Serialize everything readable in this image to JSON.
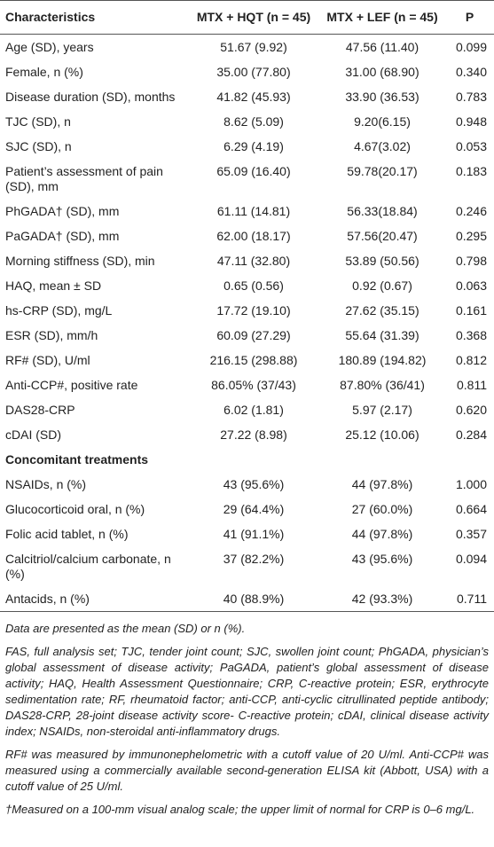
{
  "table": {
    "header": [
      "Characteristics",
      "MTX + HQT (n = 45)",
      "MTX + LEF (n = 45)",
      "P"
    ],
    "rows": [
      [
        "Age (SD), years",
        "51.67 (9.92)",
        "47.56 (11.40)",
        "0.099"
      ],
      [
        "Female, n (%)",
        "35.00 (77.80)",
        "31.00 (68.90)",
        "0.340"
      ],
      [
        "Disease duration (SD), months",
        "41.82 (45.93)",
        "33.90 (36.53)",
        "0.783"
      ],
      [
        "TJC (SD), n",
        "8.62 (5.09)",
        "9.20(6.15)",
        "0.948"
      ],
      [
        "SJC (SD), n",
        "6.29 (4.19)",
        "4.67(3.02)",
        "0.053"
      ],
      [
        "Patient’s assessment of pain (SD), mm",
        "65.09 (16.40)",
        "59.78(20.17)",
        "0.183"
      ],
      [
        "PhGADA† (SD), mm",
        "61.11 (14.81)",
        "56.33(18.84)",
        "0.246"
      ],
      [
        "PaGADA† (SD), mm",
        "62.00 (18.17)",
        "57.56(20.47)",
        "0.295"
      ],
      [
        "Morning stiffness (SD), min",
        "47.11 (32.80)",
        "53.89 (50.56)",
        "0.798"
      ],
      [
        "HAQ, mean ± SD",
        "0.65 (0.56)",
        "0.92 (0.67)",
        "0.063"
      ],
      [
        "hs-CRP (SD), mg/L",
        "17.72 (19.10)",
        "27.62 (35.15)",
        "0.161"
      ],
      [
        "ESR (SD), mm/h",
        "60.09 (27.29)",
        "55.64 (31.39)",
        "0.368"
      ],
      [
        "RF# (SD), U/ml",
        "216.15 (298.88)",
        "180.89 (194.82)",
        "0.812"
      ],
      [
        "Anti-CCP#, positive rate",
        "86.05% (37/43)",
        "87.80% (36/41)",
        "0.811"
      ],
      [
        "DAS28-CRP",
        "6.02 (1.81)",
        "5.97 (2.17)",
        "0.620"
      ],
      [
        "cDAI (SD)",
        "27.22 (8.98)",
        "25.12 (10.06)",
        "0.284"
      ],
      [
        "Concomitant treatments"
      ],
      [
        "NSAIDs, n (%)",
        "43 (95.6%)",
        "44 (97.8%)",
        "1.000"
      ],
      [
        "Glucocorticoid oral, n (%)",
        "29 (64.4%)",
        "27 (60.0%)",
        "0.664"
      ],
      [
        "Folic acid tablet, n (%)",
        "41 (91.1%)",
        "44 (97.8%)",
        "0.357"
      ],
      [
        "Calcitriol/calcium carbonate, n (%)",
        "37 (82.2%)",
        "43 (95.6%)",
        "0.094"
      ],
      [
        "Antacids, n (%)",
        "40 (88.9%)",
        "42 (93.3%)",
        "0.711"
      ]
    ],
    "notes": [
      "Data are presented as the mean (SD) or n (%).",
      "FAS, full analysis set; TJC, tender joint count; SJC, swollen joint count; PhGADA, physician’s global assessment of disease activity; PaGADA, patient’s global assessment of disease activity; HAQ, Health Assessment Questionnaire; CRP, C-reactive protein; ESR, erythrocyte sedimentation rate; RF, rheumatoid factor; anti-CCP, anti-cyclic citrullinated peptide antibody; DAS28-CRP, 28-joint disease activity score- C-reactive protein; cDAI, clinical disease activity index; NSAIDs, non-steroidal anti-inflammatory drugs.",
      "RF# was measured by immunonephelometric with a cutoff value of 20 U/ml. Anti-CCP# was measured using a commercially available second-generation ELISA kit (Abbott, USA) with a cutoff value of 25 U/ml.",
      "†Measured on a 100-mm visual analog scale; the upper limit of normal for CRP is 0–6 mg/L."
    ]
  }
}
